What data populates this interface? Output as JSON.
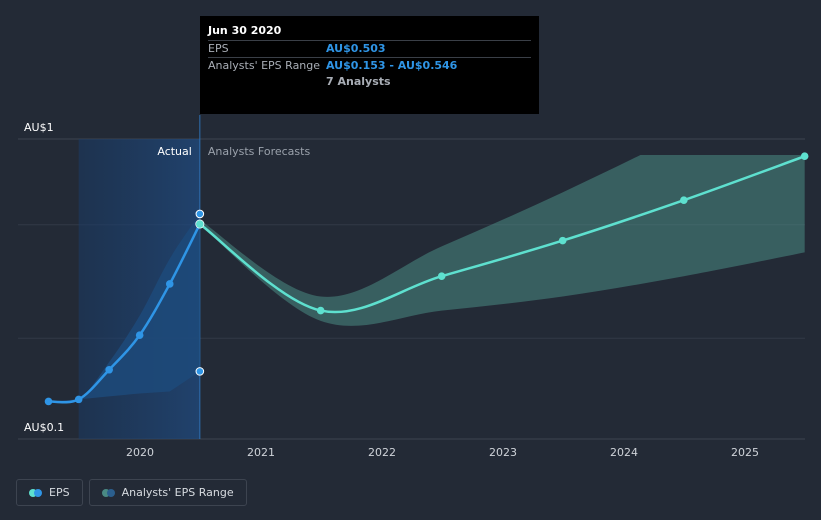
{
  "chart_data": {
    "type": "line",
    "y_scale": "log",
    "ylim": [
      0.1,
      1
    ],
    "y_tick_labels": [
      "AU$1",
      "AU$0.1"
    ],
    "x_tick_labels": [
      "2020",
      "2021",
      "2022",
      "2023",
      "2024",
      "2025"
    ],
    "section_labels": {
      "actual": "Actual",
      "forecast": "Analysts Forecasts"
    },
    "series": [
      {
        "name": "EPS",
        "color": "#2f95e6",
        "points": [
          {
            "x": "2019-03-31",
            "y": 0.12
          },
          {
            "x": "2019-06-30",
            "y": 0.122
          },
          {
            "x": "2019-09-30",
            "y": 0.155
          },
          {
            "x": "2019-12-31",
            "y": 0.205
          },
          {
            "x": "2020-03-31",
            "y": 0.31
          },
          {
            "x": "2020-06-30",
            "y": 0.503
          }
        ]
      },
      {
        "name": "EPS forecast",
        "color": "#5ee0cf",
        "points": [
          {
            "x": "2020-06-30",
            "y": 0.503
          },
          {
            "x": "2021-06-30",
            "y": 0.25
          },
          {
            "x": "2022-06-30",
            "y": 0.33
          },
          {
            "x": "2023-06-30",
            "y": 0.44
          },
          {
            "x": "2024-06-30",
            "y": 0.61
          },
          {
            "x": "2025-06-30",
            "y": 0.87
          }
        ]
      }
    ],
    "range_band_past": [
      {
        "x": "2019-03-31",
        "low": 0.12,
        "high": 0.12
      },
      {
        "x": "2019-06-30",
        "low": 0.122,
        "high": 0.122
      },
      {
        "x": "2019-09-30",
        "low": 0.125,
        "high": 0.165
      },
      {
        "x": "2019-12-31",
        "low": 0.128,
        "high": 0.24
      },
      {
        "x": "2020-03-31",
        "low": 0.13,
        "high": 0.38
      },
      {
        "x": "2020-06-30",
        "low": 0.153,
        "high": 0.546
      }
    ],
    "range_band_forecast": [
      {
        "x": "2020-06-30",
        "low": 0.5,
        "high": 0.52
      },
      {
        "x": "2021-06-30",
        "low": 0.23,
        "high": 0.28
      },
      {
        "x": "2022-06-30",
        "low": 0.25,
        "high": 0.42
      },
      {
        "x": "2023-06-30",
        "low": 0.28,
        "high": 0.65
      },
      {
        "x": "2024-06-30",
        "low": 0.33,
        "high": 1.05
      },
      {
        "x": "2025-06-30",
        "low": 0.4,
        "high": 1.8
      }
    ],
    "colors": {
      "eps_actual": "#2f95e6",
      "eps_forecast": "#5ee0cf",
      "band_forecast": "#4a8a84",
      "band_past": "#1d4a7a"
    }
  },
  "tooltip": {
    "date": "Jun 30 2020",
    "eps_label": "EPS",
    "eps_value": "AU$0.503",
    "range_label": "Analysts' EPS Range",
    "range_value": "AU$0.153 - AU$0.546",
    "analysts": "7 Analysts"
  },
  "legend": {
    "eps_label": "EPS",
    "range_label": "Analysts' EPS Range"
  }
}
